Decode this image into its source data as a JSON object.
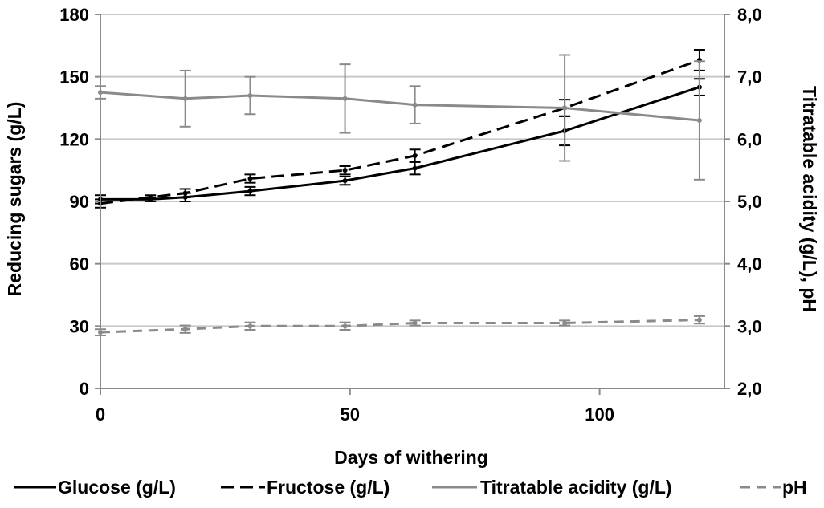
{
  "chart_data": {
    "type": "line",
    "xlabel": "Days of withering",
    "ylabel_left": "Reducing sugars (g/L)",
    "ylabel_right": "Titratable acidity (g/L), pH",
    "xlim": [
      0,
      125
    ],
    "ylim_left": [
      0,
      180
    ],
    "ylim_right": [
      2.0,
      8.0
    ],
    "x_ticks": [
      0,
      50,
      100
    ],
    "y_ticks_left": [
      "0",
      "30",
      "60",
      "90",
      "120",
      "150",
      "180"
    ],
    "y_ticks_right": [
      "2,0",
      "3,0",
      "4,0",
      "5,0",
      "6,0",
      "7,0",
      "8,0"
    ],
    "grid": "horizontal",
    "legend_position": "bottom",
    "series": [
      {
        "name": "Glucose (g/L)",
        "axis": "left",
        "color": "#000000",
        "dash": "solid",
        "x": [
          0,
          10,
          17,
          30,
          49,
          63,
          93,
          120
        ],
        "y": [
          91,
          91,
          92,
          95,
          100,
          106,
          124,
          145
        ],
        "err": [
          2,
          1,
          2,
          2,
          2,
          3,
          7,
          4
        ]
      },
      {
        "name": "Fructose (g/L)",
        "axis": "left",
        "color": "#000000",
        "dash": "dashed",
        "x": [
          0,
          10,
          17,
          30,
          49,
          63,
          93,
          120
        ],
        "y": [
          89,
          92,
          94,
          101,
          105,
          112,
          135,
          158
        ],
        "err": [
          2,
          1,
          2,
          2,
          2,
          3,
          4,
          5
        ]
      },
      {
        "name": "Titratable acidity (g/L)",
        "axis": "right",
        "color": "#8a8a8a",
        "dash": "solid",
        "x": [
          0,
          17,
          30,
          49,
          63,
          93,
          120
        ],
        "y": [
          6.75,
          6.65,
          6.7,
          6.65,
          6.55,
          6.5,
          6.3
        ],
        "err": [
          0.1,
          0.45,
          0.3,
          0.55,
          0.3,
          0.85,
          0.95
        ]
      },
      {
        "name": "pH",
        "axis": "right",
        "color": "#8a8a8a",
        "dash": "dashed",
        "x": [
          0,
          17,
          30,
          49,
          63,
          93,
          120
        ],
        "y": [
          2.9,
          2.95,
          3.0,
          3.0,
          3.05,
          3.05,
          3.1
        ],
        "err": [
          0.05,
          0.06,
          0.06,
          0.06,
          0.04,
          0.04,
          0.06
        ]
      }
    ]
  }
}
